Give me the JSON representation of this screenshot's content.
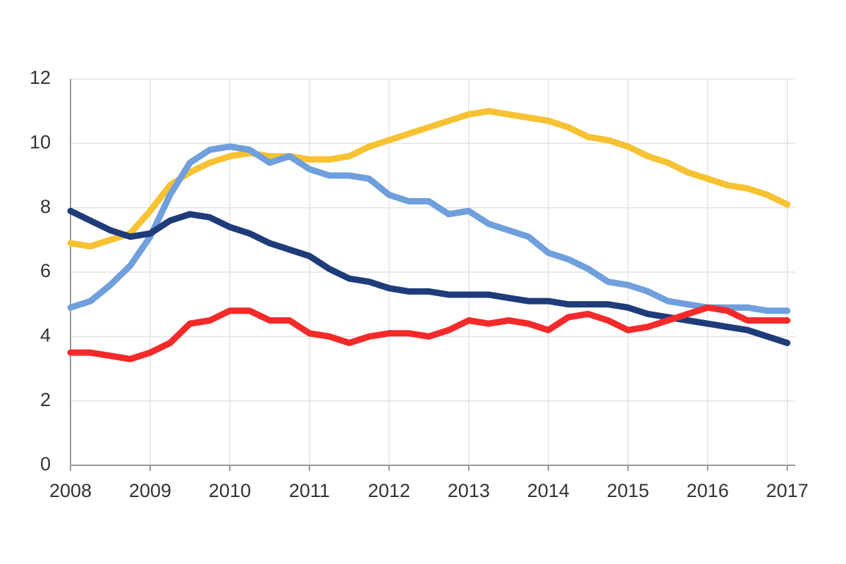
{
  "chart_data": {
    "type": "line",
    "x": [
      2008,
      2008.25,
      2008.5,
      2008.75,
      2009,
      2009.25,
      2009.5,
      2009.75,
      2010,
      2010.25,
      2010.5,
      2010.75,
      2011,
      2011.25,
      2011.5,
      2011.75,
      2012,
      2012.25,
      2012.5,
      2012.75,
      2013,
      2013.25,
      2013.5,
      2013.75,
      2014,
      2014.25,
      2014.5,
      2014.75,
      2015,
      2015.25,
      2015.5,
      2015.75,
      2016,
      2016.25,
      2016.5,
      2016.75,
      2017
    ],
    "series": [
      {
        "color": "#f7c232",
        "values": [
          6.9,
          6.8,
          7.0,
          7.2,
          7.9,
          8.7,
          9.1,
          9.4,
          9.6,
          9.7,
          9.6,
          9.6,
          9.5,
          9.5,
          9.6,
          9.9,
          10.1,
          10.3,
          10.5,
          10.7,
          10.9,
          11.0,
          10.9,
          10.8,
          10.7,
          10.5,
          10.2,
          10.1,
          9.9,
          9.6,
          9.4,
          9.1,
          8.9,
          8.7,
          8.6,
          8.4,
          8.1
        ]
      },
      {
        "color": "#6f9fdc",
        "values": [
          4.9,
          5.1,
          5.6,
          6.2,
          7.1,
          8.4,
          9.4,
          9.8,
          9.9,
          9.8,
          9.4,
          9.6,
          9.2,
          9.0,
          9.0,
          8.9,
          8.4,
          8.2,
          8.2,
          7.8,
          7.9,
          7.5,
          7.3,
          7.1,
          6.6,
          6.4,
          6.1,
          5.7,
          5.6,
          5.4,
          5.1,
          5.0,
          4.9,
          4.9,
          4.9,
          4.8,
          4.8
        ]
      },
      {
        "color": "#1f3c7a",
        "values": [
          7.9,
          7.6,
          7.3,
          7.1,
          7.2,
          7.6,
          7.8,
          7.7,
          7.4,
          7.2,
          6.9,
          6.7,
          6.5,
          6.1,
          5.8,
          5.7,
          5.5,
          5.4,
          5.4,
          5.3,
          5.3,
          5.3,
          5.2,
          5.1,
          5.1,
          5.0,
          5.0,
          5.0,
          4.9,
          4.7,
          4.6,
          4.5,
          4.4,
          4.3,
          4.2,
          4.0,
          3.8
        ]
      },
      {
        "color": "#f42a2a",
        "values": [
          3.5,
          3.5,
          3.4,
          3.3,
          3.5,
          3.8,
          4.4,
          4.5,
          4.8,
          4.8,
          4.5,
          4.5,
          4.1,
          4.0,
          3.8,
          4.0,
          4.1,
          4.1,
          4.0,
          4.2,
          4.5,
          4.4,
          4.5,
          4.4,
          4.2,
          4.6,
          4.7,
          4.5,
          4.2,
          4.3,
          4.5,
          4.7,
          4.9,
          4.8,
          4.5,
          4.5,
          4.5
        ]
      }
    ],
    "xlim": [
      2008,
      2017.1
    ],
    "xticks": [
      2008,
      2009,
      2010,
      2011,
      2012,
      2013,
      2014,
      2015,
      2016,
      2017
    ],
    "ylim": [
      0,
      12
    ],
    "yticks": [
      0,
      2,
      4,
      6,
      8,
      10,
      12
    ],
    "grid": true
  }
}
